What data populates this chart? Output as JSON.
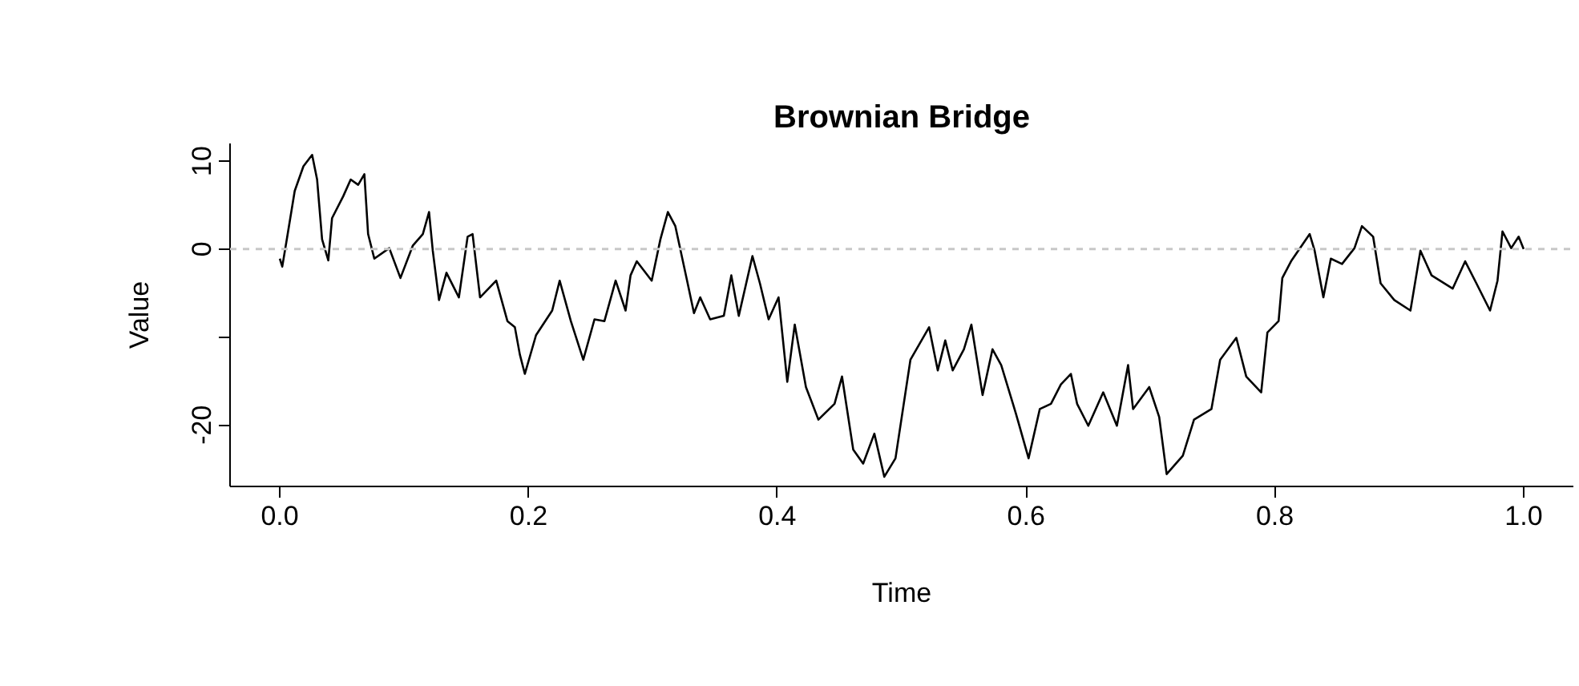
{
  "chart_data": {
    "type": "line",
    "title": "Brownian Bridge",
    "xlabel": "Time",
    "ylabel": "Value",
    "x": [
      0,
      0.002,
      0.006,
      0.012,
      0.019,
      0.026,
      0.03,
      0.034,
      0.039,
      0.042,
      0.051,
      0.057,
      0.063,
      0.068,
      0.071,
      0.076,
      0.088,
      0.097,
      0.107,
      0.115,
      0.12,
      0.123,
      0.128,
      0.134,
      0.144,
      0.151,
      0.155,
      0.161,
      0.174,
      0.183,
      0.189,
      0.193,
      0.197,
      0.206,
      0.219,
      0.225,
      0.234,
      0.244,
      0.253,
      0.261,
      0.27,
      0.278,
      0.282,
      0.287,
      0.299,
      0.306,
      0.312,
      0.318,
      0.327,
      0.333,
      0.338,
      0.346,
      0.357,
      0.363,
      0.369,
      0.38,
      0.386,
      0.393,
      0.401,
      0.408,
      0.414,
      0.423,
      0.433,
      0.446,
      0.452,
      0.461,
      0.469,
      0.478,
      0.486,
      0.495,
      0.507,
      0.522,
      0.529,
      0.535,
      0.541,
      0.55,
      0.556,
      0.565,
      0.573,
      0.58,
      0.592,
      0.602,
      0.611,
      0.62,
      0.628,
      0.636,
      0.641,
      0.65,
      0.662,
      0.673,
      0.682,
      0.686,
      0.699,
      0.707,
      0.713,
      0.726,
      0.735,
      0.749,
      0.756,
      0.769,
      0.777,
      0.789,
      0.794,
      0.803,
      0.806,
      0.813,
      0.828,
      0.832,
      0.839,
      0.845,
      0.854,
      0.864,
      0.87,
      0.879,
      0.885,
      0.896,
      0.909,
      0.917,
      0.926,
      0.943,
      0.953,
      0.962,
      0.973,
      0.979,
      0.983,
      0.99,
      0.996,
      1.0
    ],
    "series": [
      {
        "color": "#000000",
        "values": [
          -1.1,
          -2.0,
          1.4,
          6.6,
          9.4,
          10.7,
          7.9,
          1.1,
          -1.3,
          3.5,
          6.0,
          7.9,
          7.3,
          8.5,
          1.7,
          -1.1,
          0.1,
          -3.3,
          0.4,
          1.7,
          4.2,
          -0.2,
          -5.8,
          -2.7,
          -5.5,
          1.4,
          1.7,
          -5.5,
          -3.6,
          -8.2,
          -8.9,
          -12.0,
          -14.2,
          -9.8,
          -7.0,
          -3.6,
          -8.2,
          -12.6,
          -8.0,
          -8.2,
          -3.6,
          -7.0,
          -3.0,
          -1.4,
          -3.6,
          1.1,
          4.2,
          2.6,
          -3.3,
          -7.3,
          -5.5,
          -8.0,
          -7.6,
          -3.0,
          -7.6,
          -0.8,
          -3.9,
          -8.0,
          -5.5,
          -15.1,
          -8.6,
          -15.7,
          -19.4,
          -17.6,
          -14.5,
          -22.8,
          -24.4,
          -21.0,
          -25.9,
          -23.8,
          -12.6,
          -8.9,
          -13.8,
          -10.4,
          -13.8,
          -11.4,
          -8.6,
          -16.6,
          -11.4,
          -13.2,
          -18.8,
          -23.8,
          -18.2,
          -17.6,
          -15.4,
          -14.2,
          -17.6,
          -20.1,
          -16.3,
          -20.1,
          -13.2,
          -18.2,
          -15.7,
          -19.1,
          -25.6,
          -23.5,
          -19.4,
          -18.2,
          -12.6,
          -10.1,
          -14.5,
          -16.3,
          -9.5,
          -8.2,
          -3.3,
          -1.4,
          1.7,
          -0.2,
          -5.5,
          -1.1,
          -1.7,
          0.1,
          2.6,
          1.4,
          -3.9,
          -5.8,
          -7.0,
          -0.2,
          -3.0,
          -4.5,
          -1.4,
          -3.9,
          -7.0,
          -3.6,
          2.0,
          0.1,
          1.4,
          0
        ]
      }
    ],
    "xlim": [
      -0.04,
      1.04
    ],
    "ylim": [
      -27,
      12
    ],
    "xticks": [
      {
        "value": 0,
        "label": "0.0"
      },
      0.2,
      0.4,
      0.6,
      0.8,
      {
        "value": 1,
        "label": "1.0"
      }
    ],
    "yticks": [
      10,
      0,
      {
        "value": -10,
        "label": null
      },
      -20
    ],
    "ref_lines": [
      {
        "axis": "y",
        "value": 0,
        "color": "#c8c8c8",
        "line_style": "dashed"
      }
    ],
    "line_style": "solid"
  }
}
